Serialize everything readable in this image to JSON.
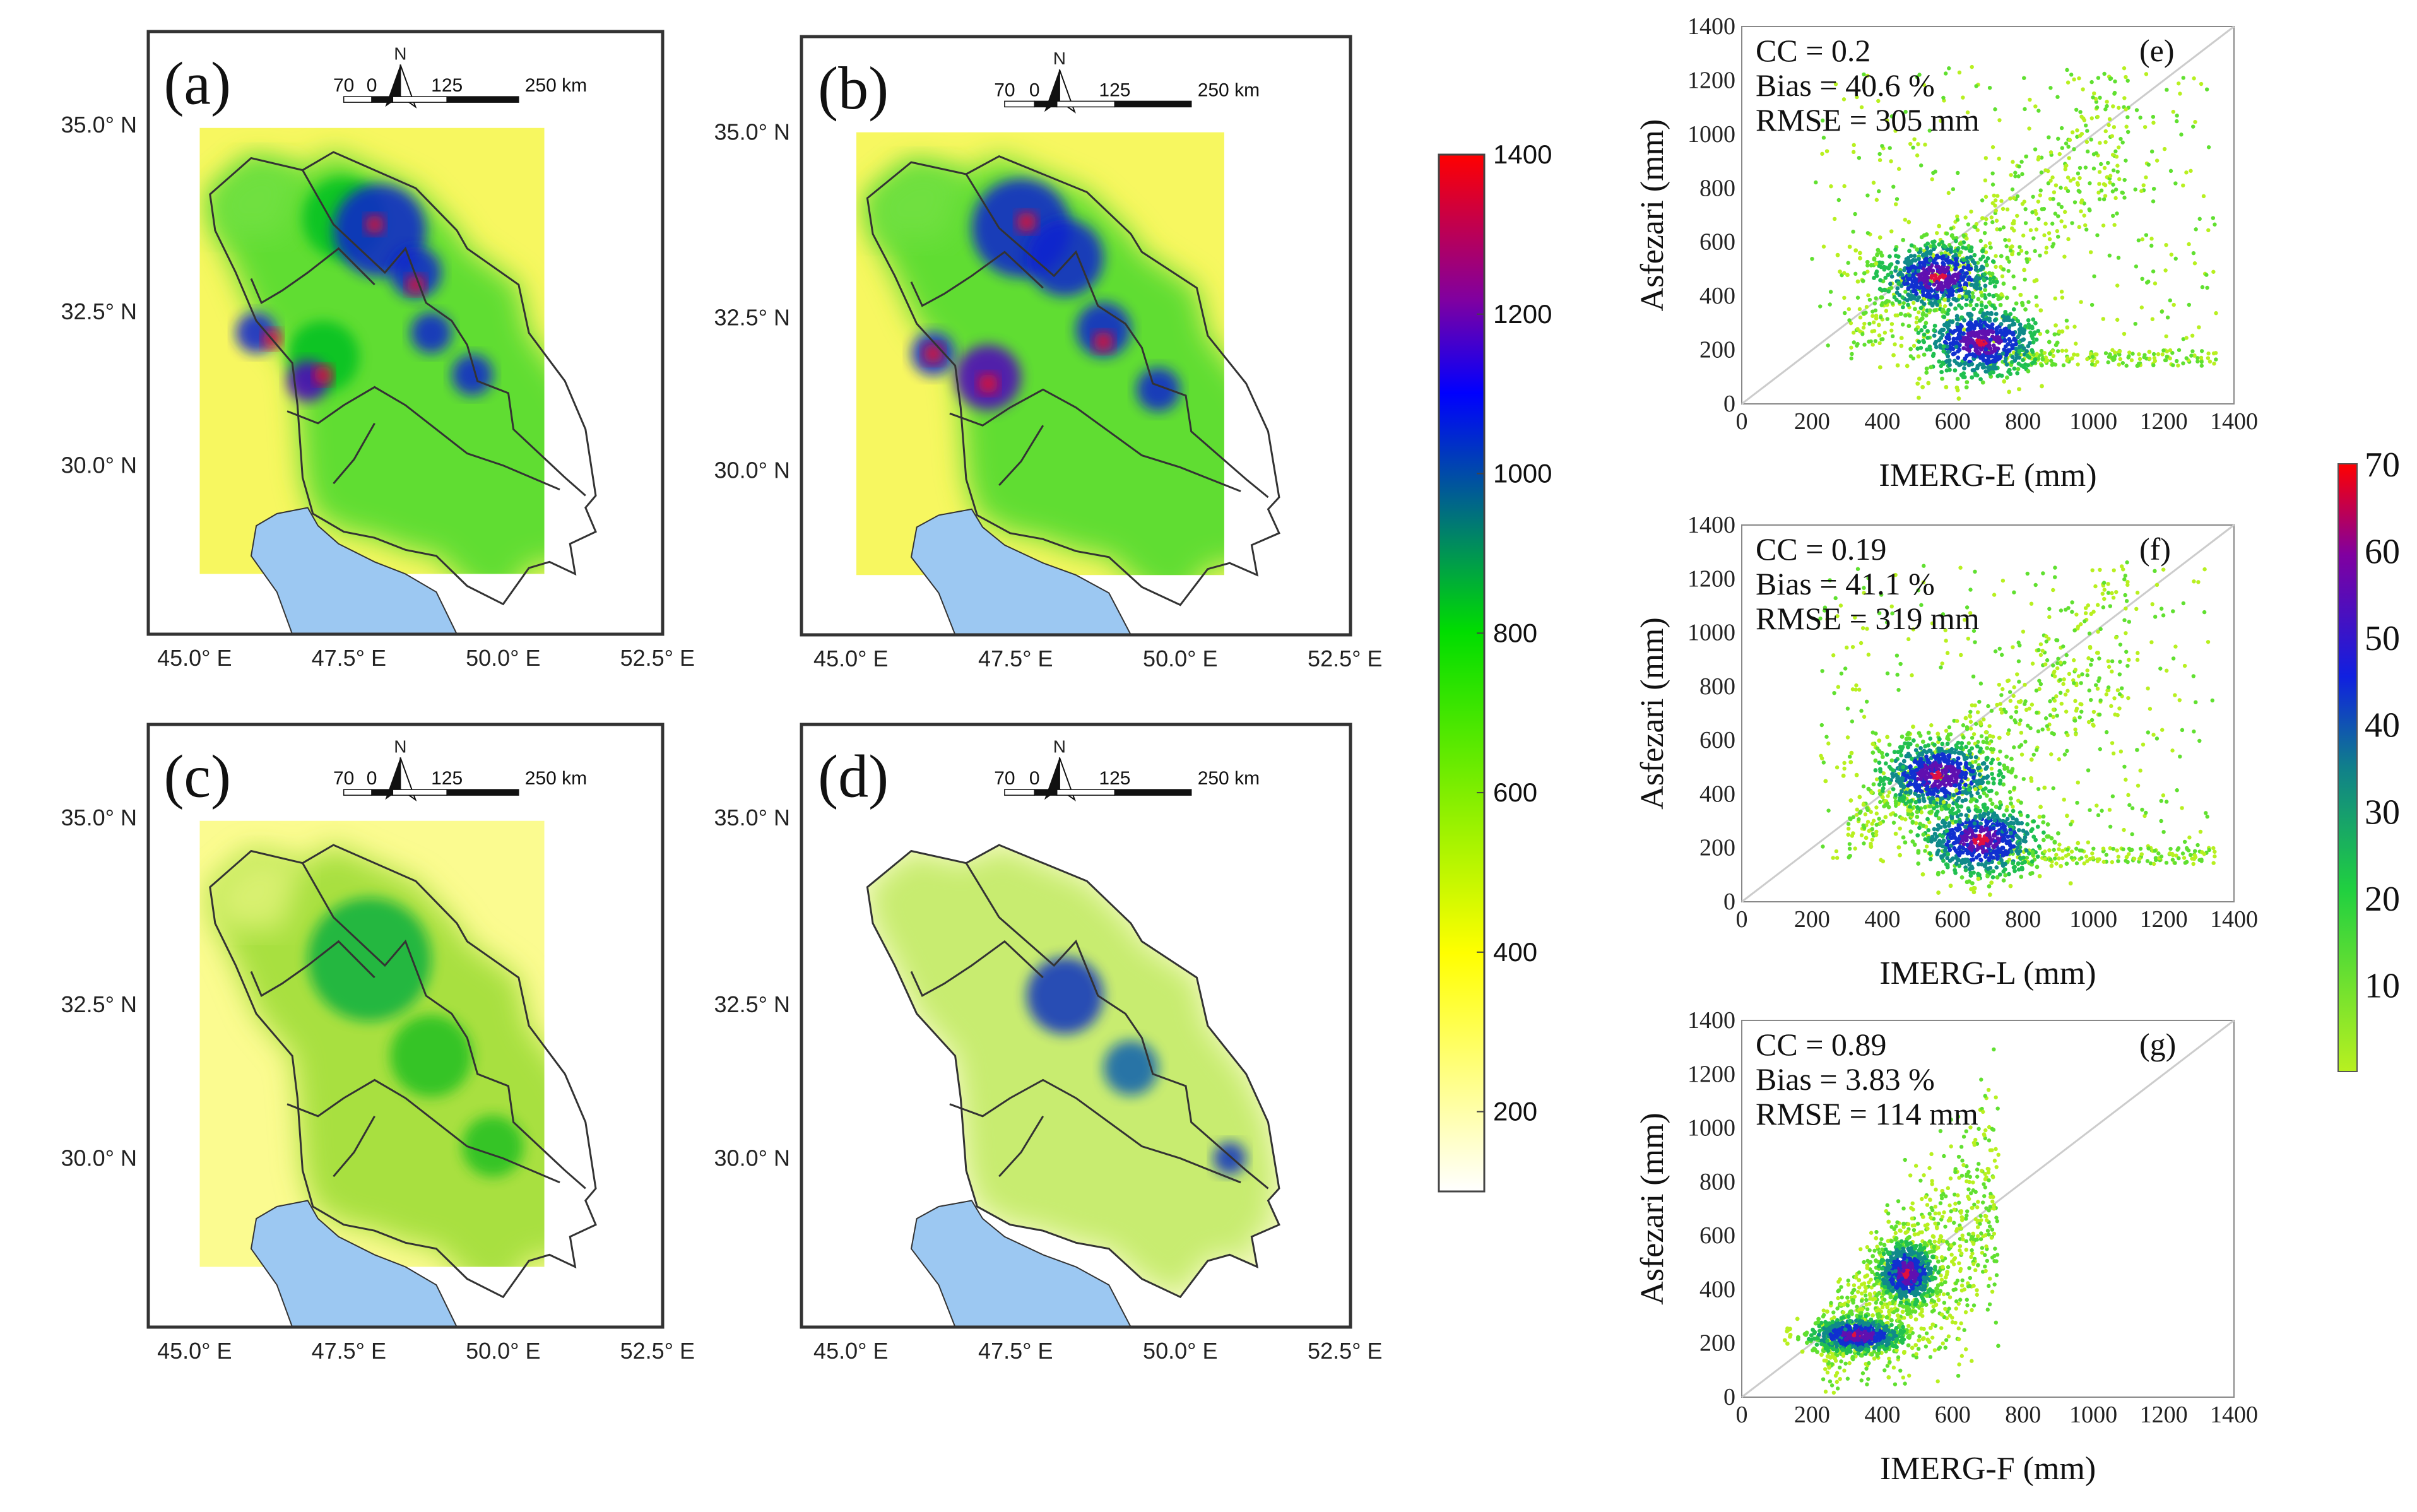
{
  "colors": {
    "sea": "#9cc8f2",
    "border": "#333333",
    "ramp": [
      "#ffffff",
      "#ffff00",
      "#00dd00",
      "#0000ff",
      "#ff0000"
    ],
    "scatter_ramp": [
      "#b8f020",
      "#30d030",
      "#1060b0",
      "#1020e0",
      "#8000a0",
      "#ff0000"
    ]
  },
  "maps": [
    {
      "label": "(a)",
      "north": "N",
      "scale": [
        "70",
        "0",
        "125",
        "250 km"
      ],
      "lat_ticks": [
        "35.0° N",
        "32.5° N",
        "30.0° N"
      ],
      "lon_ticks": [
        "45.0° E",
        "47.5° E",
        "50.0° E",
        "52.5° E"
      ]
    },
    {
      "label": "(b)",
      "north": "N",
      "scale": [
        "70",
        "0",
        "125",
        "250 km"
      ],
      "lat_ticks": [
        "35.0° N",
        "32.5° N",
        "30.0° N"
      ],
      "lon_ticks": [
        "45.0° E",
        "47.5° E",
        "50.0° E",
        "52.5° E"
      ]
    },
    {
      "label": "(c)",
      "north": "N",
      "scale": [
        "70",
        "0",
        "125",
        "250 km"
      ],
      "lat_ticks": [
        "35.0° N",
        "32.5° N",
        "30.0° N"
      ],
      "lon_ticks": [
        "45.0° E",
        "47.5° E",
        "50.0° E",
        "52.5° E"
      ]
    },
    {
      "label": "(d)",
      "north": "N",
      "scale": [
        "70",
        "0",
        "125",
        "250 km"
      ],
      "lat_ticks": [
        "35.0° N",
        "32.5° N",
        "30.0° N"
      ],
      "lon_ticks": [
        "45.0° E",
        "47.5° E",
        "50.0° E",
        "52.5° E"
      ]
    }
  ],
  "map_colorbar": {
    "ticks": [
      "1400",
      "1200",
      "1000",
      "800",
      "600",
      "400",
      "200"
    ],
    "range": [
      100,
      1400
    ]
  },
  "scatter_colorbar": {
    "ticks": [
      "70",
      "60",
      "50",
      "40",
      "30",
      "20",
      "10"
    ],
    "range": [
      0,
      70
    ]
  },
  "chart_data": [
    {
      "type": "scatter",
      "panel": "(e)",
      "xlabel": "IMERG-E (mm)",
      "ylabel": "Asfezari (mm)",
      "xlim": [
        0,
        1400
      ],
      "ylim": [
        0,
        1400
      ],
      "ticks": [
        "0",
        "200",
        "400",
        "600",
        "800",
        "1000",
        "1200",
        "1400"
      ],
      "stats": {
        "cc": "CC = 0.2",
        "bias": "Bias = 40.6 %",
        "rmse": "RMSE = 305 mm"
      },
      "clusters": [
        {
          "x": 560,
          "y": 470,
          "density": 70
        },
        {
          "x": 680,
          "y": 230,
          "density": 70
        }
      ]
    },
    {
      "type": "scatter",
      "panel": "(f)",
      "xlabel": "IMERG-L (mm)",
      "ylabel": "Asfezari (mm)",
      "xlim": [
        0,
        1400
      ],
      "ylim": [
        0,
        1400
      ],
      "ticks": [
        "0",
        "200",
        "400",
        "600",
        "800",
        "1000",
        "1200",
        "1400"
      ],
      "stats": {
        "cc": "CC = 0.19",
        "bias": "Bias = 41.1 %",
        "rmse": "RMSE = 319 mm"
      },
      "clusters": [
        {
          "x": 560,
          "y": 470,
          "density": 70
        },
        {
          "x": 680,
          "y": 230,
          "density": 70
        }
      ]
    },
    {
      "type": "scatter",
      "panel": "(g)",
      "xlabel": "IMERG-F (mm)",
      "ylabel": "Asfezari (mm)",
      "xlim": [
        0,
        1400
      ],
      "ylim": [
        0,
        1400
      ],
      "ticks": [
        "0",
        "200",
        "400",
        "600",
        "800",
        "1000",
        "1200",
        "1400"
      ],
      "stats": {
        "cc": "CC = 0.89",
        "bias": "Bias = 3.83 %",
        "rmse": "RMSE = 114 mm"
      },
      "clusters": [
        {
          "x": 470,
          "y": 460,
          "density": 70
        },
        {
          "x": 330,
          "y": 230,
          "density": 55
        }
      ]
    }
  ]
}
